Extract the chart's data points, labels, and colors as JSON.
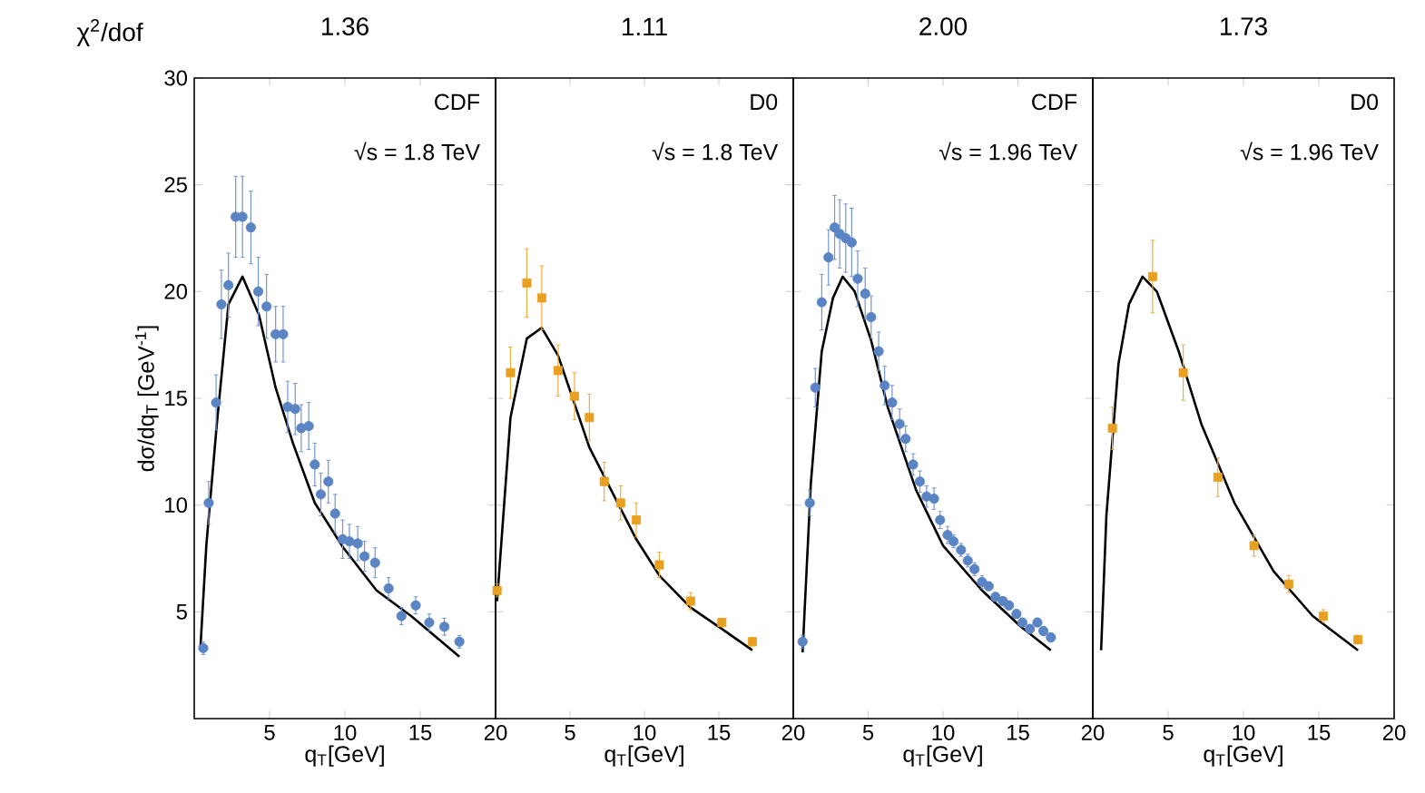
{
  "chart_data": [
    {
      "type": "scatter",
      "title": "1.36",
      "xlabel": "q$_{T}$[GeV]",
      "ylabel": "dσ/dq$_{T}$  [GeV$^{-1}$]",
      "annotations": [
        "CDF",
        "√s = 1.8 TeV",
        "χ$^{2}$/dof"
      ],
      "xlim": [
        0,
        20
      ],
      "xticks": [
        5,
        10,
        15,
        20
      ],
      "ylim": [
        0,
        30
      ],
      "yticks": [
        5,
        10,
        15,
        20,
        25,
        30
      ],
      "series": [
        {
          "type": "scatter",
          "marker": "circle",
          "color": "#5b84c4",
          "x": [
            0.6,
            0.96,
            1.45,
            1.8,
            2.27,
            2.75,
            3.2,
            3.76,
            4.25,
            4.8,
            5.4,
            5.9,
            6.2,
            6.7,
            7.1,
            7.6,
            8.0,
            8.4,
            8.9,
            9.35,
            9.85,
            10.3,
            10.85,
            11.3,
            12.0,
            12.9,
            13.75,
            14.7,
            15.6,
            16.6,
            17.6
          ],
          "values": [
            3.3,
            10.1,
            14.8,
            19.4,
            20.3,
            23.5,
            23.5,
            23.0,
            20.0,
            19.3,
            18.0,
            18.0,
            14.6,
            14.5,
            13.6,
            13.7,
            11.9,
            10.5,
            11.1,
            9.6,
            8.4,
            8.3,
            8.2,
            7.6,
            7.3,
            6.1,
            4.8,
            5.3,
            4.5,
            4.3,
            3.6
          ],
          "errors": [
            0.3,
            1.0,
            1.3,
            1.6,
            1.5,
            1.9,
            1.9,
            1.7,
            1.6,
            1.5,
            1.3,
            1.3,
            1.2,
            1.2,
            1.1,
            1.1,
            1.0,
            1.0,
            1.0,
            0.9,
            0.9,
            0.8,
            0.8,
            0.7,
            0.7,
            0.5,
            0.4,
            0.4,
            0.4,
            0.4,
            0.3
          ]
        },
        {
          "type": "line",
          "color": "#000000",
          "x": [
            0.4,
            0.8,
            1.5,
            2.27,
            3.2,
            4.3,
            5.4,
            6.55,
            8.0,
            9.9,
            12.1,
            14.4,
            17.6
          ],
          "values": [
            3.2,
            8.1,
            13.8,
            19.4,
            20.7,
            18.9,
            15.5,
            12.9,
            10.1,
            8.0,
            6.0,
            4.8,
            2.9
          ]
        }
      ]
    },
    {
      "type": "scatter",
      "title": "1.11",
      "xlabel": "q$_{T}$[GeV]",
      "annotations": [
        "D0",
        "√s = 1.8 TeV"
      ],
      "xlim": [
        0,
        20
      ],
      "xticks": [
        5,
        10,
        15,
        20
      ],
      "ylim": [
        0,
        30
      ],
      "yticks": [
        5,
        10,
        15,
        20,
        25,
        30
      ],
      "tick_labels": "x",
      "series": [
        {
          "type": "scatter",
          "marker": "square",
          "color": "#e8a020",
          "x": [
            0.1,
            1.0,
            2.1,
            3.1,
            4.2,
            5.3,
            6.3,
            7.3,
            8.4,
            9.45,
            11.0,
            13.1,
            15.2,
            17.25
          ],
          "values": [
            6.0,
            16.2,
            20.4,
            19.7,
            16.3,
            15.1,
            14.1,
            11.1,
            10.1,
            9.3,
            7.2,
            5.5,
            4.5,
            3.6
          ],
          "errors": [
            0.3,
            1.2,
            1.6,
            1.5,
            1.2,
            1.1,
            1.1,
            0.9,
            0.8,
            0.8,
            0.6,
            0.4,
            0.2,
            0.2
          ]
        },
        {
          "type": "line",
          "color": "#000000",
          "x": [
            0.1,
            1.0,
            2.1,
            3.1,
            4.2,
            6.3,
            9.45,
            11.0,
            13.1,
            15.2,
            17.25
          ],
          "values": [
            5.5,
            14.1,
            17.8,
            18.3,
            17.0,
            12.7,
            8.4,
            6.7,
            5.2,
            4.2,
            3.2
          ]
        }
      ]
    },
    {
      "type": "scatter",
      "title": "2.00",
      "xlabel": "q$_{T}$[GeV]",
      "annotations": [
        "CDF",
        "√s = 1.96 TeV"
      ],
      "xlim": [
        0,
        20
      ],
      "xticks": [
        5,
        10,
        15,
        20
      ],
      "ylim": [
        0,
        30
      ],
      "yticks": [
        5,
        10,
        15,
        20,
        25,
        30
      ],
      "tick_labels": "x",
      "series": [
        {
          "type": "scatter",
          "marker": "circle",
          "color": "#5b84c4",
          "x": [
            0.62,
            1.1,
            1.47,
            1.9,
            2.35,
            2.76,
            3.1,
            3.5,
            3.9,
            4.3,
            4.8,
            5.2,
            5.7,
            6.1,
            6.6,
            7.1,
            7.5,
            8.0,
            8.45,
            8.9,
            9.4,
            9.8,
            10.3,
            10.7,
            11.2,
            11.65,
            12.1,
            12.6,
            13.05,
            13.5,
            14.0,
            14.4,
            14.9,
            15.3,
            15.8,
            16.3,
            16.7,
            17.2
          ],
          "values": [
            3.6,
            10.1,
            15.5,
            19.5,
            21.6,
            23.0,
            22.7,
            22.5,
            22.3,
            20.6,
            19.9,
            18.8,
            17.2,
            15.6,
            14.8,
            13.8,
            13.1,
            11.9,
            11.1,
            10.4,
            10.3,
            9.3,
            8.6,
            8.3,
            7.9,
            7.4,
            7.0,
            6.4,
            6.2,
            5.7,
            5.5,
            5.3,
            4.9,
            4.5,
            4.2,
            4.5,
            4.1,
            3.8
          ],
          "errors": [
            0.3,
            0.6,
            0.9,
            1.3,
            1.3,
            1.5,
            1.6,
            1.6,
            1.6,
            1.3,
            1.2,
            1.0,
            0.9,
            0.9,
            0.8,
            0.7,
            0.6,
            0.5,
            0.5,
            0.5,
            0.5,
            0.4,
            0.4,
            0.3,
            0.3,
            0.3,
            0.3,
            0.3,
            0.2,
            0.2,
            0.2,
            0.2,
            0.2,
            0.2,
            0.2,
            0.2,
            0.2,
            0.2
          ]
        },
        {
          "type": "line",
          "color": "#000000",
          "x": [
            0.62,
            1.17,
            1.9,
            2.65,
            3.3,
            4.1,
            5.2,
            6.3,
            8.2,
            10.0,
            12.6,
            15.2,
            17.2
          ],
          "values": [
            3.1,
            11.0,
            17.2,
            19.7,
            20.7,
            20.0,
            17.7,
            14.6,
            10.7,
            8.1,
            6.0,
            4.3,
            3.2
          ]
        }
      ]
    },
    {
      "type": "scatter",
      "title": "1.73",
      "xlabel": "q$_{T}$[GeV]",
      "annotations": [
        "D0",
        "√s = 1.96 TeV"
      ],
      "xlim": [
        0,
        20
      ],
      "xticks": [
        5,
        10,
        15,
        20
      ],
      "ylim": [
        0,
        30
      ],
      "yticks": [
        5,
        10,
        15,
        20,
        25,
        30
      ],
      "tick_labels": "x",
      "series": [
        {
          "type": "scatter",
          "marker": "square",
          "color": "#e8a020",
          "x": [
            1.3,
            3.97,
            6.0,
            8.3,
            10.7,
            13.0,
            15.3,
            17.6
          ],
          "values": [
            13.6,
            20.7,
            16.2,
            11.3,
            8.1,
            6.3,
            4.8,
            3.7
          ],
          "errors": [
            1.0,
            1.7,
            1.3,
            0.9,
            0.5,
            0.4,
            0.3,
            0.2
          ]
        },
        {
          "type": "line",
          "color": "#000000",
          "x": [
            0.55,
            0.9,
            1.7,
            2.4,
            3.3,
            4.25,
            5.7,
            7.2,
            9.4,
            12.0,
            14.6,
            17.6
          ],
          "values": [
            3.2,
            9.5,
            16.6,
            19.4,
            20.7,
            20.0,
            17.2,
            13.8,
            10.1,
            6.9,
            4.8,
            3.2
          ]
        }
      ]
    }
  ]
}
